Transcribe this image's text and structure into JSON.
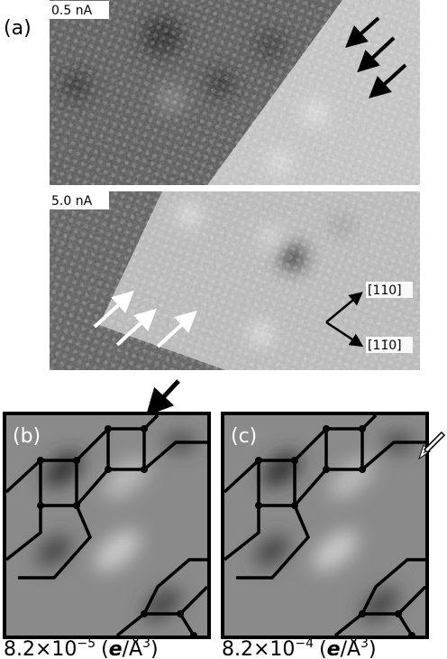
{
  "panel_a": {
    "label": "(a)",
    "top_current": "0.5 nA",
    "bottom_current": "5.0 nA",
    "direction_1": "[110]",
    "direction_2": "[11̄0]"
  },
  "panel_b": {
    "label": "(b)",
    "caption": {
      "base": "8.2×10",
      "exponent": "−5",
      "unit_open": "(",
      "unit_e": "e",
      "unit_rest": "/Å",
      "unit_exponent": "3",
      "unit_close": ")"
    }
  },
  "panel_c": {
    "label": "(c)",
    "caption": {
      "base": "8.2×10",
      "exponent": "−4",
      "unit_open": "(",
      "unit_e": "e",
      "unit_rest": "/Å",
      "unit_exponent": "3",
      "unit_close": ")"
    }
  }
}
